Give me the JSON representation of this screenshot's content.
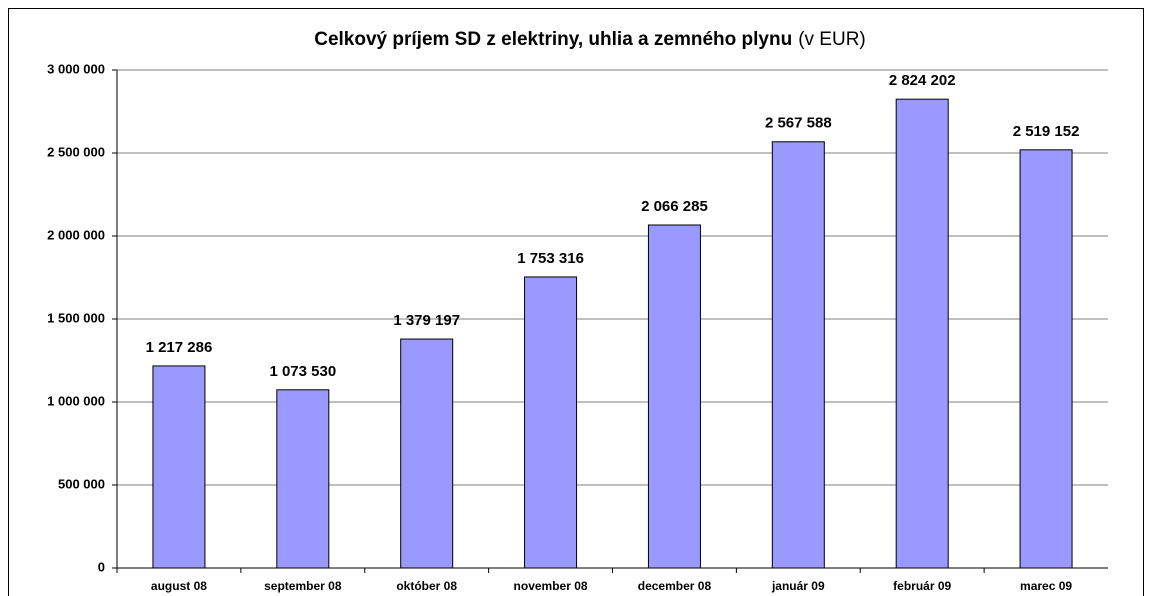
{
  "chart_data": {
    "type": "bar",
    "title": "Celkový príjem SD z elektriny, uhlia a zemného plynu",
    "subtitle": "(v EUR)",
    "categories": [
      "august 08",
      "september 08",
      "október 08",
      "november 08",
      "december 08",
      "január 09",
      "február 09",
      "marec 09"
    ],
    "values": [
      1217286,
      1073530,
      1379197,
      1753316,
      2066285,
      2567588,
      2824202,
      2519152
    ],
    "value_labels": [
      "1 217 286",
      "1 073 530",
      "1 379 197",
      "1 753 316",
      "2 066 285",
      "2 567 588",
      "2 824 202",
      "2 519 152"
    ],
    "color": "#9999ff",
    "ylim": [
      0,
      3000000
    ],
    "yticks": [
      0,
      {
        "value": 500000,
        "label": "500 000"
      },
      {
        "value": 1000000,
        "label": "1 000 000"
      },
      {
        "value": 1500000,
        "label": "1 500 000"
      },
      {
        "value": 2000000,
        "label": "2 000 000"
      },
      {
        "value": 2500000,
        "label": "2 500 000"
      },
      {
        "value": 3000000,
        "label": "3 000 000"
      }
    ],
    "grid": true
  }
}
